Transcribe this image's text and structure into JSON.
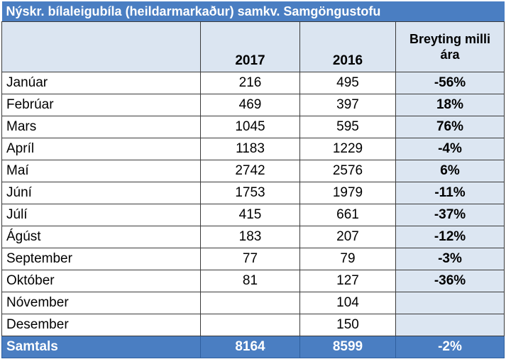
{
  "title": "Nýskr. bílaleigubíla (heildarmarkaður) samkv. Samgöngustofu",
  "headers": {
    "year1": "2017",
    "year2": "2016",
    "change": "Breyting milli ára"
  },
  "rows": [
    {
      "month": "Janúar",
      "v2017": "216",
      "v2016": "495",
      "change": "-56%"
    },
    {
      "month": "Febrúar",
      "v2017": "469",
      "v2016": "397",
      "change": "18%"
    },
    {
      "month": "Mars",
      "v2017": "1045",
      "v2016": "595",
      "change": "76%"
    },
    {
      "month": "Apríl",
      "v2017": "1183",
      "v2016": "1229",
      "change": "-4%"
    },
    {
      "month": "Maí",
      "v2017": "2742",
      "v2016": "2576",
      "change": "6%"
    },
    {
      "month": "Júní",
      "v2017": "1753",
      "v2016": "1979",
      "change": "-11%"
    },
    {
      "month": "Júlí",
      "v2017": "415",
      "v2016": "661",
      "change": "-37%"
    },
    {
      "month": "Ágúst",
      "v2017": "183",
      "v2016": "207",
      "change": "-12%"
    },
    {
      "month": "September",
      "v2017": "77",
      "v2016": "79",
      "change": "-3%"
    },
    {
      "month": "Október",
      "v2017": "81",
      "v2016": "127",
      "change": "-36%"
    },
    {
      "month": "Nóvember",
      "v2017": "",
      "v2016": "104",
      "change": ""
    },
    {
      "month": "Desember",
      "v2017": "",
      "v2016": "150",
      "change": ""
    }
  ],
  "total": {
    "label": "Samtals",
    "v2017": "8164",
    "v2016": "8599",
    "change": "-2%"
  },
  "colors": {
    "header_blue": "#4a7ec2",
    "light_blue": "#dce6f2"
  }
}
